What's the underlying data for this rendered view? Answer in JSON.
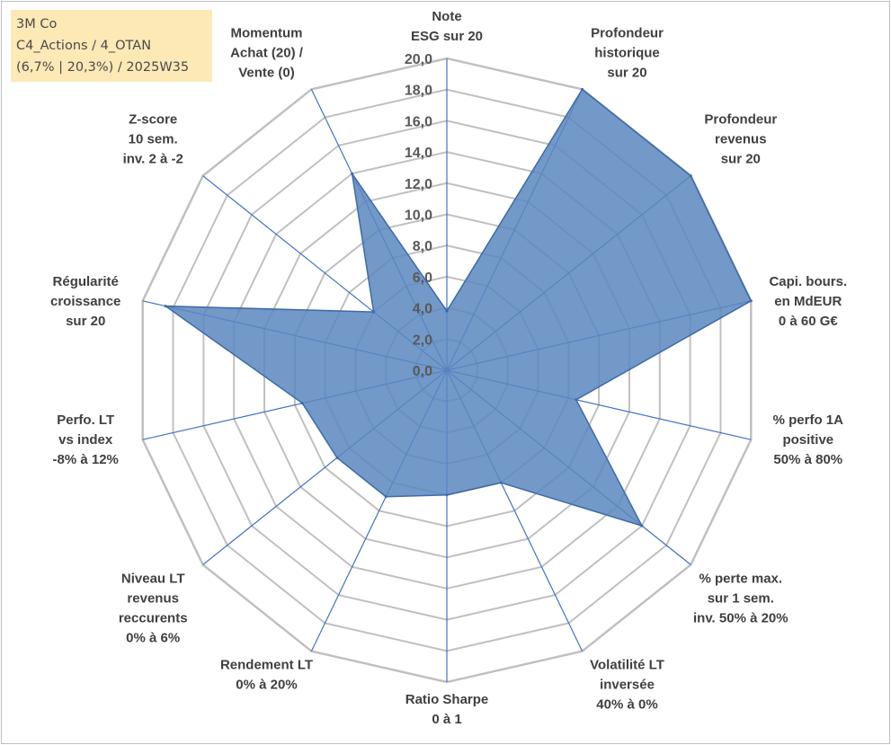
{
  "info": {
    "line1": "3M Co",
    "line2": "C4_Actions / 4_OTAN",
    "line3": "(6,7% | 20,3%) / 2025W35"
  },
  "colors": {
    "fill": "#5b87bf",
    "stroke": "#3d6aa8",
    "grid": "#c0c0c0",
    "spoke": "#4472c4",
    "info_bg": "#fde9b6"
  },
  "chart_data": {
    "type": "radar",
    "title": "",
    "rmin": 0,
    "rmax": 20,
    "tick_labels": [
      "0,0",
      "2,0",
      "4,0",
      "6,0",
      "8,0",
      "10,0",
      "12,0",
      "14,0",
      "16,0",
      "18,0",
      "20,0"
    ],
    "axes": [
      {
        "label": [
          "Note",
          "ESG sur 20"
        ]
      },
      {
        "label": [
          "Profondeur",
          "historique",
          "sur 20"
        ]
      },
      {
        "label": [
          "Profondeur",
          "revenus",
          "sur 20"
        ]
      },
      {
        "label": [
          "Capi. bours.",
          "en MdEUR",
          "0 à 60 G€"
        ]
      },
      {
        "label": [
          "% perfo 1A",
          "positive",
          "50% à 80%"
        ]
      },
      {
        "label": [
          "% perte max.",
          "sur 1 sem.",
          "inv. 50% à 20%"
        ]
      },
      {
        "label": [
          "Volatilité LT",
          "inversée",
          "40% à 0%"
        ]
      },
      {
        "label": [
          "Ratio Sharpe",
          "0 à 1"
        ]
      },
      {
        "label": [
          "Rendement LT",
          "0% à 20%"
        ]
      },
      {
        "label": [
          "Niveau LT",
          "revenus",
          "reccurents",
          "0% à 6%"
        ]
      },
      {
        "label": [
          "Perfo. LT",
          "vs index",
          "-8% à 12%"
        ]
      },
      {
        "label": [
          "Régularité",
          "croissance",
          "sur 20"
        ]
      },
      {
        "label": [
          "Z-score",
          "10 sem.",
          "inv. 2 à -2"
        ]
      },
      {
        "label": [
          "Momentum",
          "Achat (20) /",
          "Vente (0)"
        ]
      }
    ],
    "series": [
      {
        "values": [
          3.8,
          20,
          20,
          20,
          8.5,
          16,
          8,
          8,
          9,
          9,
          9.5,
          18.5,
          6,
          14
        ]
      }
    ]
  }
}
